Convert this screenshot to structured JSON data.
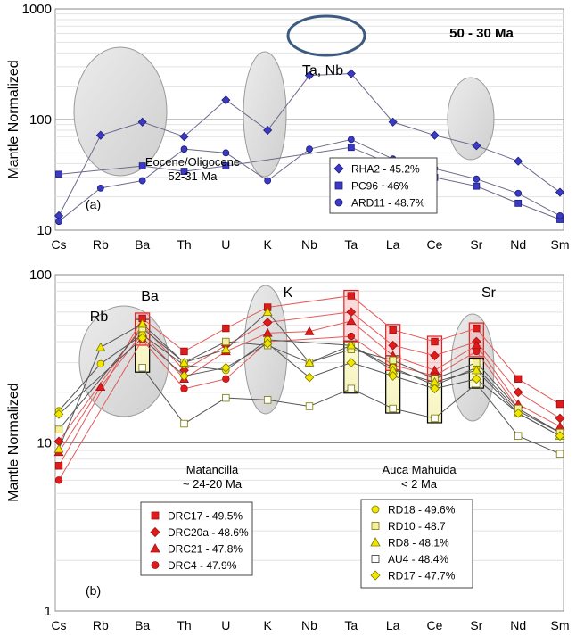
{
  "chart_data": [
    {
      "type": "line",
      "panel": "(a)",
      "yscale": "log",
      "ylim": [
        10,
        1000
      ],
      "grid": "horizontal minor lines",
      "ylabel": "Mantle Normalized",
      "xlabel": "",
      "title": "50 - 30 Ma",
      "categories": [
        "Cs",
        "Rb",
        "Ba",
        "Th",
        "U",
        "K",
        "Nb",
        "Ta",
        "La",
        "Ce",
        "Sr",
        "Nd",
        "Sm"
      ],
      "yticks": [
        "10",
        "100",
        "1000"
      ],
      "annotations": {
        "group": "Eocene/Oligocene",
        "age": "52-31 Ma",
        "tanb": "Ta, Nb"
      },
      "legend_position": "lower-right",
      "series": [
        {
          "name": "RHA2 - 45.2%",
          "marker": "diamond",
          "color": "#3a3ac4",
          "values": [
            13.5,
            72,
            95,
            70,
            150,
            80,
            250,
            260,
            95,
            72,
            58,
            42,
            22
          ]
        },
        {
          "name": "PC96  ~46%",
          "marker": "square",
          "color": "#3a3ac4",
          "values": [
            32,
            null,
            38,
            34,
            38,
            null,
            null,
            56,
            39,
            30,
            25,
            17.5,
            12.5
          ]
        },
        {
          "name": "ARD11 - 48.7%",
          "marker": "circle",
          "color": "#3a3ac4",
          "values": [
            12,
            24,
            28,
            54,
            50,
            28,
            54,
            66,
            44,
            36,
            29,
            21.5,
            13.5
          ]
        }
      ]
    },
    {
      "type": "line",
      "panel": "(b)",
      "yscale": "log",
      "ylim": [
        1,
        100
      ],
      "grid": "horizontal minor lines",
      "ylabel": "Mantle Normalized",
      "xlabel": "",
      "categories": [
        "Cs",
        "Rb",
        "Ba",
        "Th",
        "U",
        "K",
        "Nb",
        "Ta",
        "La",
        "Ce",
        "Sr",
        "Nd",
        "Sm"
      ],
      "yticks": [
        "1",
        "10",
        "100"
      ],
      "annotations": {
        "matancilla": "Matancilla",
        "matancilla_age": "~ 24-20 Ma",
        "auca": "Auca Mahuida",
        "auca_age": "< 2 Ma",
        "rb": "Rb",
        "ba": "Ba",
        "k": "K",
        "sr": "Sr"
      },
      "legend_left_position": "lower-left",
      "legend_right_position": "lower-right",
      "series": [
        {
          "name": "DRC17 - 49.5%",
          "marker": "square",
          "color": "#e01b1b",
          "group": "red",
          "values": [
            7.3,
            null,
            55,
            35,
            48,
            64,
            null,
            75,
            47,
            40,
            48,
            24,
            17
          ]
        },
        {
          "name": "DRC20a - 48.6%",
          "marker": "diamond",
          "color": "#e01b1b",
          "group": "red",
          "values": [
            10.2,
            null,
            50,
            27,
            38,
            52,
            null,
            60,
            38,
            33,
            40,
            20,
            14
          ]
        },
        {
          "name": "DRC21 - 47.8%",
          "marker": "triangle",
          "color": "#e01b1b",
          "group": "red",
          "values": [
            8.8,
            21.5,
            45,
            24,
            35,
            45,
            46,
            53,
            33,
            27,
            38,
            17,
            12.5
          ]
        },
        {
          "name": "DRC4 - 47.9%",
          "marker": "circle",
          "color": "#e01b1b",
          "group": "red",
          "values": [
            6,
            null,
            41,
            21,
            24,
            40,
            null,
            43,
            29,
            25,
            35,
            16,
            11.5
          ]
        },
        {
          "name": "RD18 - 49.6%",
          "marker": "circle",
          "color": "#f2e600",
          "group": "yellow",
          "values": [
            15.5,
            29.5,
            44,
            29,
            27,
            41,
            null,
            38,
            28,
            22,
            28,
            15.5,
            11.5
          ]
        },
        {
          "name": "RD10 - 48.7",
          "marker": "square",
          "color": "#f4f0a0",
          "group": "yellow",
          "values": [
            12,
            null,
            48,
            30,
            40,
            38,
            30,
            36,
            31,
            24,
            30,
            16,
            11.5
          ]
        },
        {
          "name": "RD8 - 48.1%",
          "marker": "triangle",
          "color": "#f2e600",
          "group": "yellow",
          "values": [
            9.2,
            37,
            51,
            30,
            36,
            60,
            30,
            38,
            27,
            23,
            27,
            15,
            11
          ]
        },
        {
          "name": "AU4 - 48.4%",
          "marker": "square-open",
          "color": "#ffffff",
          "group": "yellow",
          "values": [
            null,
            null,
            28,
            13,
            18.5,
            18,
            16.5,
            21,
            16,
            14,
            22.5,
            11,
            8.6
          ]
        },
        {
          "name": "RD17 - 47.7%",
          "marker": "diamond",
          "color": "#f2e600",
          "group": "yellow",
          "values": [
            14.8,
            null,
            42,
            25,
            28,
            39,
            24.5,
            30,
            25,
            21,
            24,
            15,
            11
          ]
        }
      ]
    }
  ]
}
